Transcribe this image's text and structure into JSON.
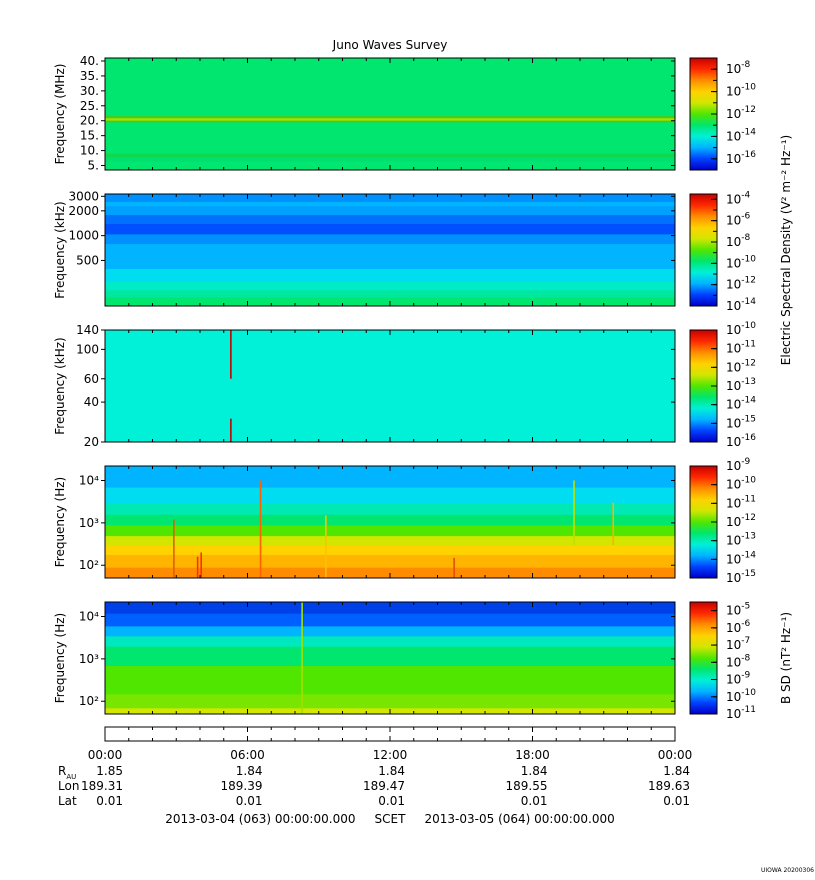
{
  "chart_data": {
    "title": "Juno Waves Survey",
    "type": "heatmap",
    "colorscale": [
      "#0000c8",
      "#0040ff",
      "#00b4ff",
      "#00f0d8",
      "#00e66e",
      "#50e600",
      "#d2e600",
      "#ffd200",
      "#ff8c00",
      "#ff2800",
      "#c80000"
    ],
    "panels": [
      {
        "id": "hfr-high",
        "ylabel": "Frequency (MHz)",
        "ylim": [
          3.5,
          41
        ],
        "yscale": "linear",
        "ticks": [
          {
            "v": 40,
            "t": "40."
          },
          {
            "v": 35,
            "t": "35."
          },
          {
            "v": 30,
            "t": "30."
          },
          {
            "v": 25,
            "t": "25."
          },
          {
            "v": 20,
            "t": "20."
          },
          {
            "v": 15,
            "t": "15."
          },
          {
            "v": 10,
            "t": "10."
          },
          {
            "v": 5,
            "t": "5."
          }
        ],
        "colorbar": {
          "log_min": -17,
          "log_max": -7,
          "tick_exps": [
            "-8",
            "-10",
            "-12",
            "-14",
            "-16"
          ]
        },
        "bands": [
          [
            3.5,
            "#00e66e"
          ],
          [
            6.5,
            "#00e070"
          ],
          [
            7.9,
            "#10d84a"
          ],
          [
            9.2,
            "#00e66e"
          ],
          [
            19.6,
            "#3ed020"
          ],
          [
            20.2,
            "#a4e000"
          ],
          [
            21.0,
            "#3ed020"
          ],
          [
            21.8,
            "#00e66e"
          ],
          [
            41,
            "#00e66e"
          ]
        ],
        "events": []
      },
      {
        "id": "hfr-low",
        "ylabel": "Frequency (kHz)",
        "ylim": [
          140,
          3200
        ],
        "yscale": "log",
        "ticks": [
          {
            "v": 3000,
            "t": "3000"
          },
          {
            "v": 2000,
            "t": "2000"
          },
          {
            "v": 1000,
            "t": "1000"
          },
          {
            "v": 500,
            "t": "500"
          }
        ],
        "colorbar": {
          "log_min": -14,
          "log_max": -3.5,
          "tick_exps": [
            "-4",
            "-6",
            "-8",
            "-10",
            "-12",
            "-14"
          ],
          "label": "Electric Spectral Density (V² m⁻² Hz⁻¹)"
        },
        "bands": [
          [
            140,
            "#00e66e"
          ],
          [
            180,
            "#00e8a0"
          ],
          [
            220,
            "#00ecc8"
          ],
          [
            280,
            "#00dcf0"
          ],
          [
            400,
            "#00b4ff"
          ],
          [
            800,
            "#0090ff"
          ],
          [
            1050,
            "#0050ff"
          ],
          [
            1400,
            "#0070ff"
          ],
          [
            1800,
            "#00a0ff"
          ],
          [
            2300,
            "#00b4ff"
          ],
          [
            2600,
            "#0090ff"
          ],
          [
            3200,
            "#0090ff"
          ]
        ],
        "events": []
      },
      {
        "id": "lfr-high",
        "ylabel": "Frequency (kHz)",
        "ylim": [
          20,
          140
        ],
        "yscale": "log",
        "ticks": [
          {
            "v": 140,
            "t": "140"
          },
          {
            "v": 100,
            "t": "100"
          },
          {
            "v": 60,
            "t": "60"
          },
          {
            "v": 40,
            "t": "40"
          },
          {
            "v": 20,
            "t": "20"
          }
        ],
        "colorbar": {
          "log_min": -16,
          "log_max": -10,
          "tick_exps": [
            "-10",
            "-11",
            "-12",
            "-13",
            "-14",
            "-15",
            "-16"
          ]
        },
        "bands": [
          [
            20,
            "#00f0d8"
          ],
          [
            140,
            "#00f0d8"
          ]
        ],
        "events": [
          {
            "t": 5.3,
            "color": "#c80000",
            "f0": 60,
            "f1": 140
          },
          {
            "t": 5.3,
            "color": "#c80000",
            "f0": 20,
            "f1": 30
          }
        ]
      },
      {
        "id": "lfr-low",
        "ylabel": "Frequency (Hz)",
        "ylim": [
          50,
          22000
        ],
        "yscale": "log",
        "ticks": [
          {
            "v": 10000,
            "t": "10⁴"
          },
          {
            "v": 1000,
            "t": "10³"
          },
          {
            "v": 100,
            "t": "10²"
          }
        ],
        "colorbar": {
          "log_min": -15,
          "log_max": -9,
          "tick_exps": [
            "-9",
            "-10",
            "-11",
            "-12",
            "-13",
            "-14",
            "-15"
          ]
        },
        "bands": [
          [
            50,
            "#ff8c00"
          ],
          [
            90,
            "#ffb400"
          ],
          [
            180,
            "#ffd200"
          ],
          [
            300,
            "#d2e600"
          ],
          [
            500,
            "#50e600"
          ],
          [
            900,
            "#00e66e"
          ],
          [
            1600,
            "#00e8b4"
          ],
          [
            3000,
            "#00dcf0"
          ],
          [
            7000,
            "#00b4ff"
          ],
          [
            22000,
            "#00b4ff"
          ]
        ],
        "events": [
          {
            "t": 2.9,
            "color": "#e06000",
            "f0": 50,
            "f1": 1200
          },
          {
            "t": 6.55,
            "color": "#ff6000",
            "f0": 50,
            "f1": 10000
          },
          {
            "t": 4.05,
            "color": "#ff3000",
            "f0": 50,
            "f1": 200
          },
          {
            "t": 3.9,
            "color": "#ff3000",
            "f0": 50,
            "f1": 160
          },
          {
            "t": 14.7,
            "color": "#e05000",
            "f0": 50,
            "f1": 150
          },
          {
            "t": 19.75,
            "color": "#c0e000",
            "f0": 300,
            "f1": 10000
          },
          {
            "t": 21.4,
            "color": "#ffb000",
            "f0": 300,
            "f1": 3000
          },
          {
            "t": 9.3,
            "color": "#ffc000",
            "f0": 50,
            "f1": 1500
          }
        ]
      },
      {
        "id": "magnetic",
        "ylabel": "Frequency (Hz)",
        "ylim": [
          50,
          22000
        ],
        "yscale": "log",
        "ticks": [
          {
            "v": 10000,
            "t": "10⁴"
          },
          {
            "v": 1000,
            "t": "10³"
          },
          {
            "v": 100,
            "t": "10²"
          }
        ],
        "colorbar": {
          "log_min": -11,
          "log_max": -4.5,
          "tick_exps": [
            "-5",
            "-6",
            "-7",
            "-8",
            "-9",
            "-10",
            "-11"
          ],
          "label": "B SD (nT² Hz⁻¹)"
        },
        "bands": [
          [
            50,
            "#d2e600"
          ],
          [
            70,
            "#78e600"
          ],
          [
            150,
            "#50e600"
          ],
          [
            700,
            "#00e66e"
          ],
          [
            2000,
            "#00e8c0"
          ],
          [
            3500,
            "#00b4ff"
          ],
          [
            6000,
            "#0060ff"
          ],
          [
            12000,
            "#0040e8"
          ],
          [
            22000,
            "#0040e8"
          ]
        ],
        "events": [
          {
            "t": 8.3,
            "color": "#a0e000",
            "f0": 50,
            "f1": 22000
          }
        ]
      }
    ],
    "x_ticks": [
      "00:00",
      "06:00",
      "12:00",
      "18:00",
      "00:00"
    ],
    "x_range_hours": [
      0,
      24
    ],
    "ephemeris": [
      {
        "label": "R",
        "label_sub": "AU",
        "values": [
          "1.85",
          "1.84",
          "1.84",
          "1.84",
          "1.84"
        ]
      },
      {
        "label": "Lon",
        "label_sub": "",
        "values": [
          "189.31",
          "189.39",
          "189.47",
          "189.55",
          "189.63"
        ]
      },
      {
        "label": "Lat",
        "label_sub": "",
        "values": [
          "0.01",
          "0.01",
          "0.01",
          "0.01",
          "0.01"
        ]
      }
    ],
    "time_range_text": "2013-03-04 (063) 00:00:00.000     SCET     2013-03-05 (064) 00:00:00.000",
    "footer": "UIOWA 20200306"
  }
}
